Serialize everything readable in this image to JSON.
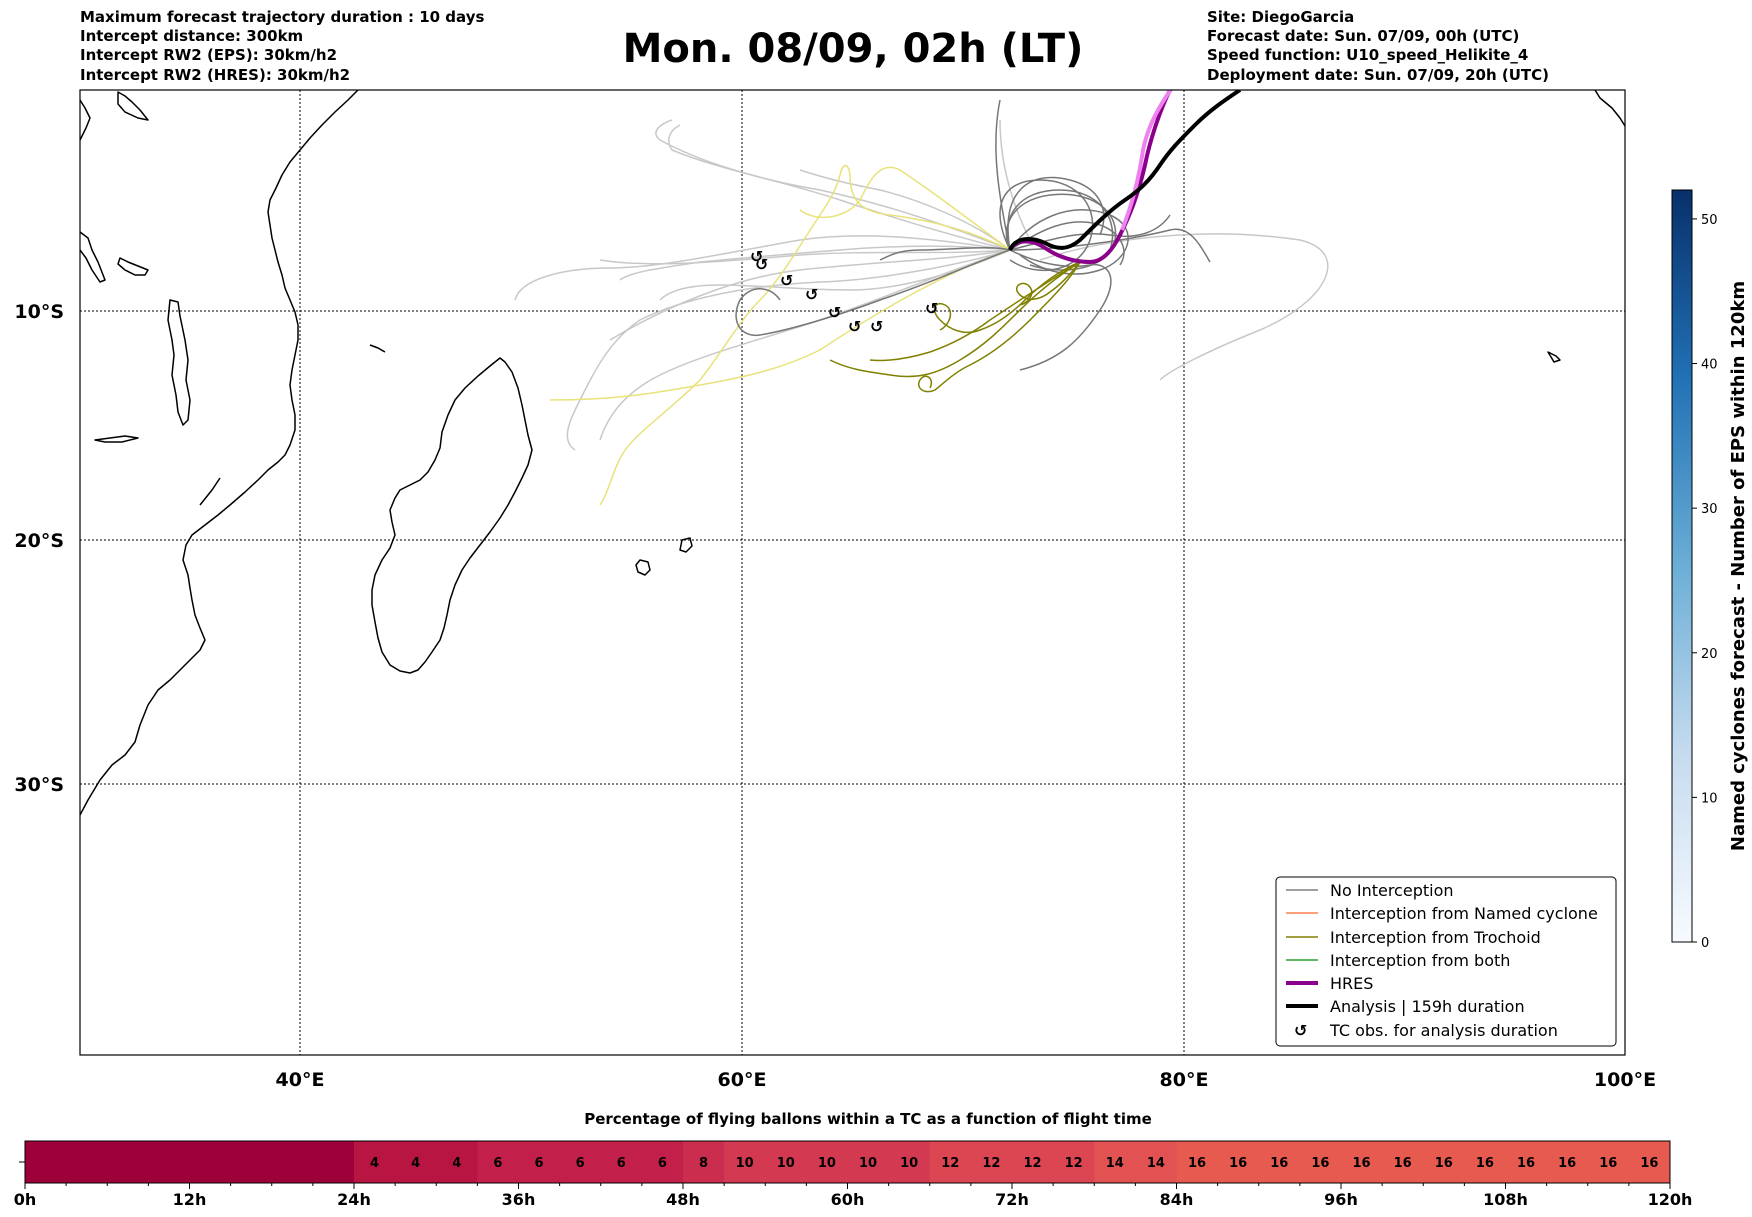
{
  "header": {
    "left": [
      "Maximum forecast trajectory duration : 10 days",
      "Intercept distance: 300km",
      "Intercept RW2 (EPS):  30km/h2",
      "Intercept RW2 (HRES): 30km/h2"
    ],
    "title": "Mon. 08/09, 02h (LT)",
    "right": [
      "Site: DiegoGarcia",
      "Forecast date: Sun. 07/09, 00h (UTC)",
      "Speed function: U10_speed_Helikite_4",
      "Deployment date: Sun. 07/09, 20h (UTC)"
    ]
  },
  "map": {
    "lat_labels": [
      "10°S",
      "20°S",
      "30°S"
    ],
    "lon_labels": [
      "40°E",
      "60°E",
      "80°E",
      "100°E"
    ]
  },
  "legend": {
    "items": [
      {
        "label": "No Interception",
        "color": "#808080",
        "width": 1.5
      },
      {
        "label": "Interception from Named cyclone",
        "color": "#ff7f50",
        "width": 1.5
      },
      {
        "label": "Interception from Trochoid",
        "color": "#808000",
        "width": 1.5
      },
      {
        "label": "Interception from both",
        "color": "#2ca02c",
        "width": 1.5
      },
      {
        "label": "HRES",
        "color": "#8b008b",
        "width": 4
      },
      {
        "label": "Analysis | 159h duration",
        "color": "#000000",
        "width": 4
      },
      {
        "label": "TC obs. for analysis duration",
        "color": "#000000",
        "symbol": "↺"
      }
    ]
  },
  "colorbar": {
    "label": "Named cyclones forecast - Number of EPS within 120km",
    "ticks": [
      "0",
      "10",
      "20",
      "30",
      "40",
      "50"
    ],
    "colors": [
      "#f7fbff",
      "#c6dbef",
      "#6baed6",
      "#2171b5",
      "#08306b"
    ]
  },
  "percentage_bar": {
    "title": "Percentage of flying ballons within a TC as a function of flight time",
    "values": [
      "4",
      "4",
      "4",
      "6",
      "6",
      "6",
      "6",
      "6",
      "8",
      "10",
      "10",
      "10",
      "10",
      "10",
      "12",
      "12",
      "12",
      "12",
      "14",
      "14",
      "16",
      "16",
      "16",
      "16",
      "16",
      "16",
      "16",
      "16",
      "16",
      "16",
      "16",
      "16"
    ],
    "ticks": [
      "0h",
      "12h",
      "24h",
      "36h",
      "48h",
      "60h",
      "72h",
      "84h",
      "96h",
      "108h",
      "120h"
    ],
    "dark_color": "#9e003a",
    "colors": {
      "4": "#b91543",
      "6": "#c2204a",
      "8": "#cb2d4e",
      "10": "#d33a51",
      "12": "#dc4653",
      "14": "#e25253",
      "16": "#e65a50"
    }
  },
  "tc_symbol": "↺"
}
